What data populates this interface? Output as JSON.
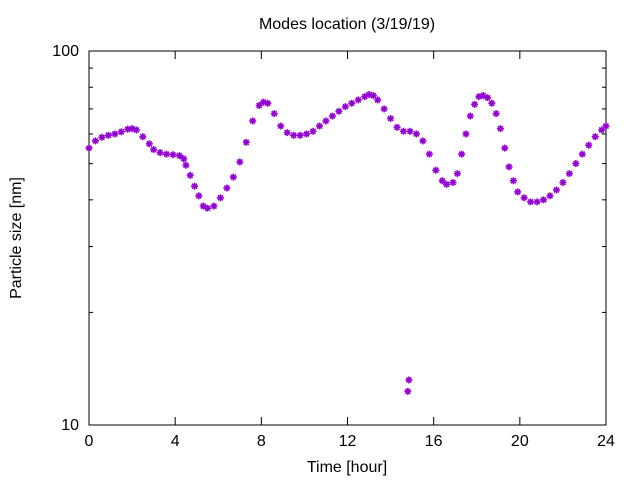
{
  "chart_data": {
    "type": "scatter",
    "title": "Modes location (3/19/19)",
    "xlabel": "Time [hour]",
    "ylabel": "Particle size [nm]",
    "xlim": [
      0,
      24
    ],
    "ylim": [
      10,
      100
    ],
    "y_scale": "log",
    "x_ticks": [
      0,
      4,
      8,
      12,
      16,
      20,
      24
    ],
    "x_tick_labels": [
      "0",
      "4",
      "8",
      "12",
      "16",
      "20",
      "24"
    ],
    "y_tick_labels": [
      {
        "value": 10,
        "label": "10"
      },
      {
        "value": 100,
        "label": "100"
      }
    ],
    "y_minor_ticks": [
      20,
      30,
      40,
      50,
      60,
      70,
      80,
      90
    ],
    "grid": false,
    "marker": "asterisk",
    "color": "#9400d3",
    "series": [
      {
        "name": "",
        "points": [
          [
            0.0,
            55.0
          ],
          [
            0.3,
            57.5
          ],
          [
            0.6,
            58.8
          ],
          [
            0.9,
            59.5
          ],
          [
            1.2,
            60.0
          ],
          [
            1.5,
            60.8
          ],
          [
            1.8,
            61.8
          ],
          [
            2.0,
            62.0
          ],
          [
            2.2,
            61.5
          ],
          [
            2.5,
            59.0
          ],
          [
            2.8,
            56.5
          ],
          [
            3.0,
            54.5
          ],
          [
            3.3,
            53.5
          ],
          [
            3.6,
            53.0
          ],
          [
            3.9,
            52.8
          ],
          [
            4.2,
            52.5
          ],
          [
            4.4,
            51.5
          ],
          [
            4.5,
            49.5
          ],
          [
            4.7,
            46.5
          ],
          [
            4.9,
            43.5
          ],
          [
            5.1,
            41.0
          ],
          [
            5.3,
            38.5
          ],
          [
            5.5,
            38.0
          ],
          [
            5.8,
            38.5
          ],
          [
            6.1,
            40.5
          ],
          [
            6.4,
            43.0
          ],
          [
            6.7,
            46.0
          ],
          [
            7.0,
            50.5
          ],
          [
            7.3,
            57.0
          ],
          [
            7.6,
            65.0
          ],
          [
            7.9,
            71.5
          ],
          [
            8.1,
            73.0
          ],
          [
            8.3,
            72.5
          ],
          [
            8.6,
            68.0
          ],
          [
            8.9,
            63.0
          ],
          [
            9.2,
            60.5
          ],
          [
            9.5,
            59.5
          ],
          [
            9.8,
            59.5
          ],
          [
            10.1,
            60.0
          ],
          [
            10.4,
            61.0
          ],
          [
            10.7,
            63.0
          ],
          [
            11.0,
            65.0
          ],
          [
            11.3,
            67.0
          ],
          [
            11.6,
            69.0
          ],
          [
            11.9,
            71.0
          ],
          [
            12.2,
            72.5
          ],
          [
            12.5,
            74.0
          ],
          [
            12.8,
            75.5
          ],
          [
            13.0,
            76.5
          ],
          [
            13.2,
            76.0
          ],
          [
            13.4,
            74.0
          ],
          [
            13.7,
            70.0
          ],
          [
            14.0,
            66.0
          ],
          [
            14.3,
            62.5
          ],
          [
            14.6,
            61.0
          ],
          [
            14.9,
            61.0
          ],
          [
            15.2,
            60.0
          ],
          [
            15.5,
            57.5
          ],
          [
            15.8,
            53.0
          ],
          [
            16.1,
            48.0
          ],
          [
            16.4,
            45.0
          ],
          [
            16.6,
            44.0
          ],
          [
            16.9,
            44.5
          ],
          [
            17.1,
            47.0
          ],
          [
            17.3,
            53.0
          ],
          [
            17.5,
            60.0
          ],
          [
            17.7,
            67.0
          ],
          [
            17.9,
            72.0
          ],
          [
            18.1,
            75.5
          ],
          [
            18.3,
            76.0
          ],
          [
            18.5,
            75.0
          ],
          [
            18.7,
            72.5
          ],
          [
            18.9,
            68.0
          ],
          [
            19.1,
            62.0
          ],
          [
            19.3,
            55.0
          ],
          [
            19.5,
            49.0
          ],
          [
            19.7,
            45.0
          ],
          [
            19.9,
            42.0
          ],
          [
            20.2,
            40.5
          ],
          [
            20.5,
            39.5
          ],
          [
            20.8,
            39.5
          ],
          [
            21.1,
            40.0
          ],
          [
            21.4,
            41.0
          ],
          [
            21.7,
            42.5
          ],
          [
            22.0,
            44.5
          ],
          [
            22.3,
            47.0
          ],
          [
            22.6,
            50.0
          ],
          [
            22.9,
            53.0
          ],
          [
            23.2,
            56.0
          ],
          [
            23.5,
            59.0
          ],
          [
            23.8,
            61.5
          ],
          [
            24.0,
            63.0
          ],
          [
            14.8,
            12.3
          ],
          [
            14.85,
            13.2
          ]
        ]
      }
    ]
  }
}
